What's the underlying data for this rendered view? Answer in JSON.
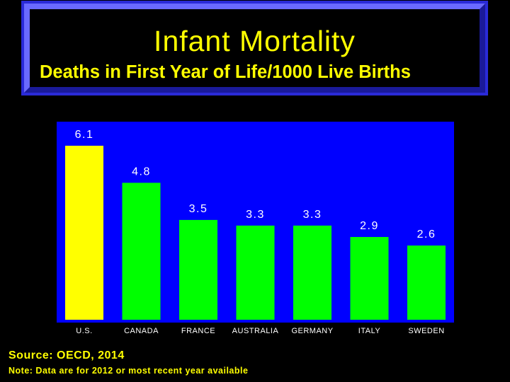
{
  "title": "Infant Mortality",
  "subtitle": "Deaths in First Year of Life/1000 Live Births",
  "footer": {
    "source": "Source: OECD, 2014",
    "note": "Note: Data are for 2012 or most recent year available"
  },
  "colors": {
    "background": "#000000",
    "plot_background": "#0000ff",
    "title_text": "#ffff00",
    "highlight_bar": "#ffff00",
    "bar": "#00ff00",
    "value_label": "#ffffff"
  },
  "chart_data": {
    "type": "bar",
    "title": "Infant Mortality",
    "subtitle": "Deaths in First Year of Life/1000 Live Births",
    "categories": [
      "U.S.",
      "CANADA",
      "FRANCE",
      "AUSTRALIA",
      "GERMANY",
      "ITALY",
      "SWEDEN"
    ],
    "values": [
      6.1,
      4.8,
      3.5,
      3.3,
      3.3,
      2.9,
      2.6
    ],
    "value_labels": [
      "6.1",
      "4.8",
      "3.5",
      "3.3",
      "3.3",
      "2.9",
      "2.6"
    ],
    "bar_colors": [
      "#ffff00",
      "#00ff00",
      "#00ff00",
      "#00ff00",
      "#00ff00",
      "#00ff00",
      "#00ff00"
    ],
    "ylim": [
      0,
      6.1
    ],
    "grid": false,
    "legend": "none"
  }
}
